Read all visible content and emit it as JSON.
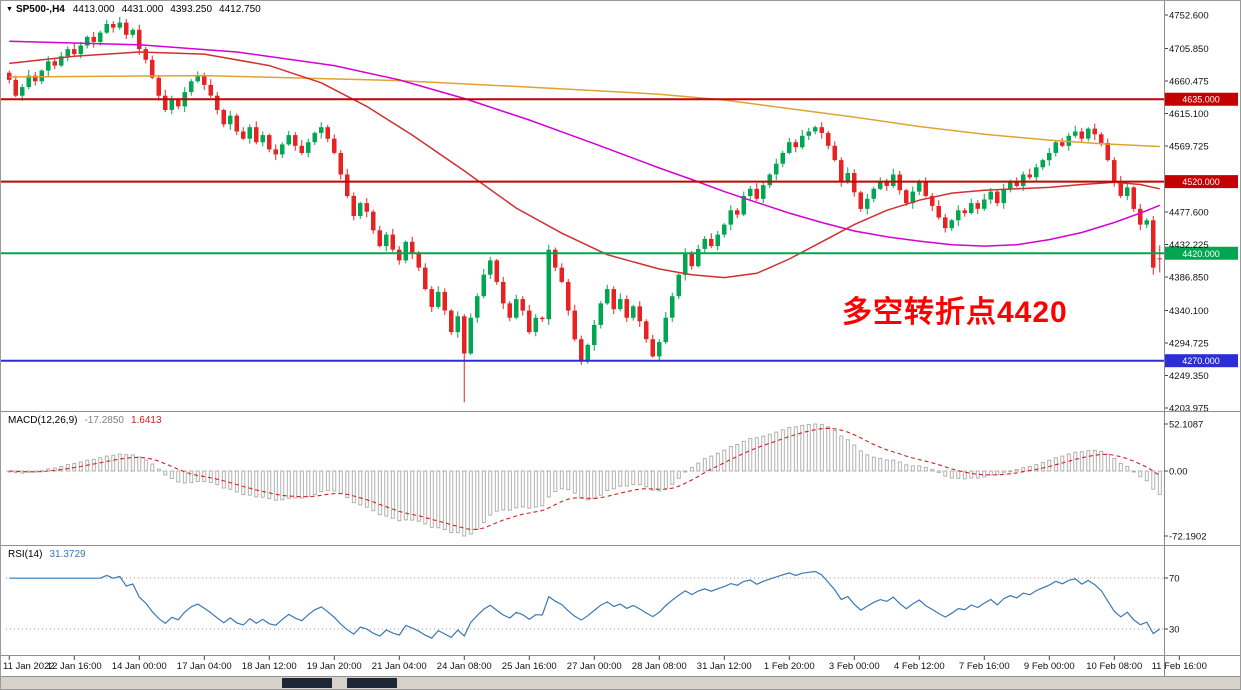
{
  "header": {
    "symbol_period": "SP500-,H4",
    "open": "4413.000",
    "high": "4431.000",
    "low": "4393.250",
    "close": "4412.750"
  },
  "annotation": {
    "text": "多空转折点4420",
    "color": "#ff0000"
  },
  "indicators": {
    "macd": {
      "label": "MACD(12,26,9)",
      "value_main": "-17.2850",
      "value_signal": "1.6413"
    },
    "rsi": {
      "label": "RSI(14)",
      "value": "31.3729"
    }
  },
  "price_axis": {
    "ticks": [
      {
        "text": "4752.600",
        "value": 4752.6
      },
      {
        "text": "4705.850",
        "value": 4705.85
      },
      {
        "text": "4660.475",
        "value": 4660.475
      },
      {
        "text": "4615.100",
        "value": 4615.1
      },
      {
        "text": "4569.725",
        "value": 4569.725
      },
      {
        "text": "4477.600",
        "value": 4477.6
      },
      {
        "text": "4432.225",
        "value": 4432.225
      },
      {
        "text": "4386.850",
        "value": 4386.85
      },
      {
        "text": "4340.100",
        "value": 4340.1
      },
      {
        "text": "4294.725",
        "value": 4294.725
      },
      {
        "text": "4249.350",
        "value": 4249.35
      },
      {
        "text": "4203.975",
        "value": 4203.975
      }
    ]
  },
  "time_axis": {
    "candles_per_label": 10,
    "labels": [
      "11 Jan 2022",
      "12 Jan 16:00",
      "14 Jan 00:00",
      "17 Jan 04:00",
      "18 Jan 12:00",
      "19 Jan 20:00",
      "21 Jan 04:00",
      "24 Jan 08:00",
      "25 Jan 16:00",
      "27 Jan 00:00",
      "28 Jan 08:00",
      "31 Jan 12:00",
      "1 Feb 20:00",
      "3 Feb 00:00",
      "4 Feb 12:00",
      "7 Feb 16:00",
      "9 Feb 00:00",
      "10 Feb 08:00",
      "11 Feb 16:00"
    ]
  },
  "chart_data": [
    {
      "type": "candlestick",
      "symbol": "SP500-",
      "timeframe": "H4",
      "title": "SP500- H4 candlestick chart",
      "ylim": [
        4203.975,
        4752.6
      ],
      "up_color": "#00a651",
      "down_color": "#e62222",
      "first_open": 4672,
      "wick_pattern": [
        3,
        6,
        4,
        8,
        5,
        2,
        7
      ],
      "closes": [
        4662,
        4640,
        4652,
        4668,
        4660,
        4675,
        4688,
        4682,
        4695,
        4705,
        4698,
        4710,
        4722,
        4715,
        4728,
        4740,
        4735,
        4742,
        4725,
        4732,
        4705,
        4690,
        4665,
        4640,
        4620,
        4635,
        4625,
        4645,
        4660,
        4668,
        4655,
        4640,
        4620,
        4600,
        4612,
        4590,
        4580,
        4596,
        4575,
        4585,
        4565,
        4558,
        4572,
        4585,
        4570,
        4560,
        4575,
        4588,
        4596,
        4580,
        4560,
        4530,
        4500,
        4472,
        4490,
        4478,
        4452,
        4430,
        4446,
        4425,
        4410,
        4436,
        4420,
        4400,
        4370,
        4345,
        4366,
        4340,
        4310,
        4332,
        4280,
        4330,
        4360,
        4390,
        4410,
        4380,
        4350,
        4330,
        4356,
        4340,
        4310,
        4330,
        4328,
        4425,
        4400,
        4380,
        4340,
        4300,
        4270,
        4292,
        4320,
        4350,
        4370,
        4342,
        4356,
        4330,
        4346,
        4325,
        4300,
        4276,
        4296,
        4330,
        4360,
        4390,
        4420,
        4402,
        4426,
        4440,
        4430,
        4446,
        4460,
        4480,
        4474,
        4500,
        4510,
        4496,
        4515,
        4530,
        4545,
        4560,
        4575,
        4568,
        4584,
        4590,
        4596,
        4588,
        4570,
        4550,
        4520,
        4532,
        4505,
        4482,
        4496,
        4510,
        4520,
        4514,
        4530,
        4508,
        4490,
        4506,
        4520,
        4500,
        4486,
        4470,
        4455,
        4466,
        4480,
        4476,
        4490,
        4482,
        4495,
        4506,
        4490,
        4510,
        4520,
        4514,
        4530,
        4526,
        4540,
        4550,
        4560,
        4575,
        4570,
        4584,
        4590,
        4580,
        4594,
        4586,
        4574,
        4550,
        4520,
        4500,
        4512,
        4482,
        4460,
        4466,
        4400,
        4412.75
      ],
      "overrides": {
        "70": {
          "low": 4212
        },
        "176": {
          "low": 4390
        },
        "177": {
          "open": 4413,
          "high": 4431,
          "low": 4393.25
        }
      },
      "last_bar_ohlc": [
        4413.0,
        4431.0,
        4393.25,
        4412.75
      ],
      "levels": [
        {
          "value": 4635.0,
          "label": "4635.000",
          "color": "#c40000",
          "width": 2
        },
        {
          "value": 4520.0,
          "label": "4520.000",
          "color": "#c40000",
          "width": 2
        },
        {
          "value": 4420.0,
          "label": "4420.000",
          "color": "#00a651",
          "width": 2
        },
        {
          "value": 4270.0,
          "label": "4270.000",
          "color": "#2d2dd8",
          "width": 2
        }
      ],
      "moving_averages": [
        {
          "name": "ma-slow-orange",
          "color": "#dfa332",
          "points": [
            [
              0,
              4666
            ],
            [
              30,
              4668
            ],
            [
              60,
              4661
            ],
            [
              80,
              4652
            ],
            [
              100,
              4642
            ],
            [
              110,
              4634
            ],
            [
              120,
              4622
            ],
            [
              130,
              4610
            ],
            [
              140,
              4597
            ],
            [
              150,
              4586
            ],
            [
              160,
              4578
            ],
            [
              168,
              4573
            ],
            [
              177,
              4569
            ]
          ]
        },
        {
          "name": "ma-mid-magenta",
          "color": "#d400d4",
          "points": [
            [
              0,
              4716
            ],
            [
              20,
              4711
            ],
            [
              35,
              4701
            ],
            [
              50,
              4682
            ],
            [
              60,
              4662
            ],
            [
              70,
              4636
            ],
            [
              80,
              4606
            ],
            [
              90,
              4573
            ],
            [
              95,
              4556
            ],
            [
              100,
              4539
            ],
            [
              105,
              4523
            ],
            [
              110,
              4506
            ],
            [
              115,
              4491
            ],
            [
              120,
              4476
            ],
            [
              125,
              4463
            ],
            [
              130,
              4451
            ],
            [
              135,
              4443
            ],
            [
              140,
              4437
            ],
            [
              145,
              4432
            ],
            [
              150,
              4430
            ],
            [
              155,
              4432
            ],
            [
              160,
              4439
            ],
            [
              165,
              4449
            ],
            [
              170,
              4463
            ],
            [
              174,
              4476
            ],
            [
              177,
              4487
            ]
          ]
        },
        {
          "name": "ma-fast-red",
          "color": "#cf3030",
          "points": [
            [
              0,
              4685
            ],
            [
              10,
              4695
            ],
            [
              20,
              4701
            ],
            [
              30,
              4698
            ],
            [
              40,
              4682
            ],
            [
              48,
              4658
            ],
            [
              55,
              4625
            ],
            [
              62,
              4585
            ],
            [
              70,
              4535
            ],
            [
              78,
              4483
            ],
            [
              85,
              4448
            ],
            [
              92,
              4418
            ],
            [
              100,
              4398
            ],
            [
              105,
              4390
            ],
            [
              110,
              4386
            ],
            [
              115,
              4392
            ],
            [
              120,
              4412
            ],
            [
              125,
              4436
            ],
            [
              130,
              4460
            ],
            [
              135,
              4480
            ],
            [
              140,
              4494
            ],
            [
              145,
              4504
            ],
            [
              150,
              4508
            ],
            [
              155,
              4510
            ],
            [
              160,
              4512
            ],
            [
              165,
              4516
            ],
            [
              170,
              4519
            ],
            [
              174,
              4516
            ],
            [
              177,
              4510
            ]
          ]
        }
      ]
    },
    {
      "type": "bar",
      "name": "MACD",
      "params": [
        12,
        26,
        9
      ],
      "derived_from": "closes of candlestick panel",
      "main_current": -17.285,
      "signal_current": 1.6413,
      "ylim": [
        -72.1902,
        52.1087
      ],
      "axis_ticks": [
        {
          "text": "52.1087",
          "value": 52.1087
        },
        {
          "text": "0.00",
          "value": 0
        },
        {
          "text": "-72.1902",
          "value": -72.1902
        }
      ],
      "histogram_color": "#a8a8a8",
      "signal_color": "#d42020",
      "signal_style": "dashed"
    },
    {
      "type": "line",
      "name": "RSI",
      "period": 14,
      "derived_from": "closes of candlestick panel",
      "current": 31.3729,
      "ylim": [
        0,
        100
      ],
      "line_color": "#3a78b5",
      "levels": [
        {
          "text": "70",
          "value": 70
        },
        {
          "text": "30",
          "value": 30
        }
      ]
    }
  ],
  "taskbar": {
    "item_count": 2
  }
}
